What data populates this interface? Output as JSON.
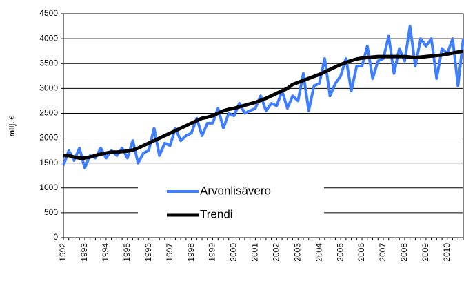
{
  "chart_data": {
    "type": "line",
    "y_label": "milj. €",
    "categories": [
      "1992",
      null,
      null,
      null,
      "1993",
      null,
      null,
      null,
      "1994",
      null,
      null,
      null,
      "1995",
      null,
      null,
      null,
      "1996",
      null,
      null,
      null,
      "1997",
      null,
      null,
      null,
      "1998",
      null,
      null,
      null,
      "1999",
      null,
      null,
      null,
      "2000",
      null,
      null,
      null,
      "2001",
      null,
      null,
      null,
      "2002",
      null,
      null,
      null,
      "2003",
      null,
      null,
      null,
      "2004",
      null,
      null,
      null,
      "2005",
      null,
      null,
      null,
      "2006",
      null,
      null,
      null,
      "2007",
      null,
      null,
      null,
      "2008",
      null,
      null,
      null,
      "2009",
      null,
      null,
      null,
      "2010",
      null,
      null,
      null
    ],
    "series": [
      {
        "name": "Arvonlisävero",
        "color": "#3f7fff",
        "width": 4,
        "values": [
          1450,
          1750,
          1550,
          1800,
          1400,
          1650,
          1600,
          1800,
          1600,
          1750,
          1650,
          1800,
          1600,
          1950,
          1500,
          1700,
          1750,
          2200,
          1650,
          1900,
          1850,
          2200,
          1950,
          2050,
          2100,
          2400,
          2050,
          2300,
          2300,
          2600,
          2200,
          2500,
          2450,
          2700,
          2500,
          2550,
          2600,
          2850,
          2550,
          2700,
          2650,
          2950,
          2600,
          2850,
          2750,
          3300,
          2550,
          3050,
          3100,
          3600,
          2850,
          3100,
          3250,
          3600,
          2950,
          3450,
          3450,
          3850,
          3200,
          3550,
          3600,
          4050,
          3300,
          3800,
          3550,
          4250,
          3450,
          4000,
          3850,
          4000,
          3200,
          3800,
          3700,
          4000,
          3050,
          4000
        ]
      },
      {
        "name": "Trendi",
        "color": "#000000",
        "width": 5,
        "values": [
          1650,
          1650,
          1620,
          1600,
          1600,
          1620,
          1650,
          1680,
          1700,
          1720,
          1720,
          1730,
          1740,
          1760,
          1800,
          1850,
          1900,
          1950,
          2000,
          2050,
          2100,
          2150,
          2200,
          2250,
          2300,
          2350,
          2400,
          2420,
          2450,
          2500,
          2550,
          2580,
          2600,
          2630,
          2660,
          2690,
          2720,
          2760,
          2800,
          2850,
          2900,
          2950,
          3000,
          3080,
          3120,
          3160,
          3200,
          3240,
          3280,
          3330,
          3380,
          3430,
          3480,
          3520,
          3560,
          3590,
          3610,
          3620,
          3630,
          3640,
          3640,
          3640,
          3640,
          3640,
          3640,
          3630,
          3620,
          3630,
          3640,
          3650,
          3660,
          3670,
          3690,
          3710,
          3730,
          3750
        ]
      }
    ],
    "ylim": [
      0,
      4500
    ],
    "yticks": [
      0,
      500,
      1000,
      1500,
      2000,
      2500,
      3000,
      3500,
      4000,
      4500
    ],
    "grid": true,
    "legend": "lower center"
  }
}
